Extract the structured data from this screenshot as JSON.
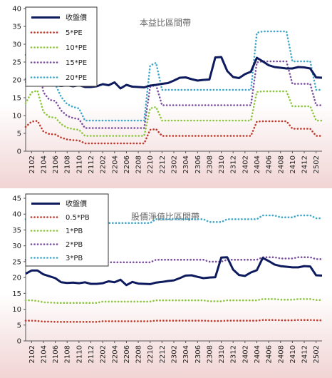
{
  "chart_data": [
    {
      "type": "line",
      "title": "本益比區間帶",
      "x_ticks": [
        "2102",
        "2104",
        "2106",
        "2108",
        "2110",
        "2112",
        "2202",
        "2204",
        "2206",
        "2208",
        "2210",
        "2212",
        "2302",
        "2304",
        "2306",
        "2308",
        "2310",
        "2312",
        "2402",
        "2404",
        "2406",
        "2408",
        "2410",
        "2412",
        "2502"
      ],
      "ylim": [
        0,
        40
      ],
      "y_ticks": [
        0,
        5,
        10,
        15,
        20,
        25,
        30,
        35,
        40
      ],
      "grid": false,
      "legend_position": "top-left",
      "series": [
        {
          "name": "收盤價",
          "color": "#0d1b5e",
          "dash": "solid",
          "values": [
            19.2,
            21.5,
            21.0,
            20.2,
            19.5,
            18.5,
            18.3,
            18.5,
            18.2,
            18.5,
            18.0,
            18.0,
            18.2,
            18.8,
            18.5,
            19.3,
            17.6,
            18.6,
            18.1,
            18.0,
            17.9,
            18.4,
            18.6,
            18.9,
            19.1,
            19.8,
            20.6,
            20.7,
            20.2,
            19.8,
            20.0,
            20.1,
            26.3,
            26.4,
            22.5,
            20.8,
            20.5,
            21.6,
            22.3,
            26.2,
            25.2,
            24.1,
            23.6,
            23.4,
            23.2,
            23.2,
            23.6,
            23.5,
            23.2,
            20.7,
            20.6
          ]
        },
        {
          "name": "5*PE",
          "color": "#c0392b",
          "dash": "dot",
          "values": [
            6.8,
            8.3,
            8.5,
            5.5,
            4.8,
            4.7,
            3.8,
            3.3,
            3.1,
            3.0,
            2.2,
            2.2,
            2.2,
            2.2,
            2.2,
            2.2,
            2.2,
            2.2,
            2.2,
            2.2,
            2.2,
            6.0,
            6.2,
            4.3,
            4.3,
            4.3,
            4.3,
            4.3,
            4.3,
            4.3,
            4.3,
            4.3,
            4.3,
            4.3,
            4.3,
            4.3,
            4.3,
            4.3,
            4.3,
            8.3,
            8.4,
            8.4,
            8.4,
            8.4,
            8.4,
            6.3,
            6.3,
            6.3,
            6.3,
            4.3,
            4.3
          ]
        },
        {
          "name": "10*PE",
          "color": "#8dc63f",
          "dash": "dot",
          "values": [
            13.5,
            16.5,
            17.0,
            11.0,
            9.6,
            9.4,
            7.6,
            6.6,
            6.2,
            6.0,
            4.3,
            4.3,
            4.3,
            4.3,
            4.3,
            4.3,
            4.3,
            4.3,
            4.3,
            4.3,
            4.3,
            12.0,
            12.4,
            8.6,
            8.6,
            8.6,
            8.6,
            8.6,
            8.6,
            8.6,
            8.6,
            8.6,
            8.6,
            8.6,
            8.6,
            8.6,
            8.6,
            8.6,
            8.6,
            16.6,
            16.8,
            16.8,
            16.8,
            16.8,
            16.8,
            12.6,
            12.6,
            12.6,
            12.6,
            8.6,
            8.6
          ]
        },
        {
          "name": "15*PE",
          "color": "#7b4fa0",
          "dash": "dot",
          "values": [
            20.3,
            24.8,
            25.5,
            16.5,
            14.4,
            14.1,
            11.4,
            9.9,
            9.3,
            9.0,
            6.5,
            6.5,
            6.5,
            6.5,
            6.5,
            6.5,
            6.5,
            6.5,
            6.5,
            6.5,
            6.5,
            18.0,
            18.6,
            12.9,
            12.9,
            12.9,
            12.9,
            12.9,
            12.9,
            12.9,
            12.9,
            12.9,
            12.9,
            12.9,
            12.9,
            12.9,
            12.9,
            12.9,
            12.9,
            24.9,
            25.2,
            25.2,
            25.2,
            25.2,
            25.2,
            18.9,
            18.9,
            18.9,
            18.9,
            12.9,
            12.9
          ]
        },
        {
          "name": "20*PE",
          "color": "#3fa7c9",
          "dash": "dot",
          "values": [
            27.0,
            33.0,
            34.0,
            22.0,
            19.2,
            18.8,
            15.2,
            13.2,
            12.4,
            12.0,
            8.6,
            8.6,
            8.6,
            8.6,
            8.6,
            8.6,
            8.6,
            8.6,
            8.6,
            8.6,
            8.6,
            24.0,
            24.8,
            17.2,
            17.2,
            17.2,
            17.2,
            17.2,
            17.2,
            17.2,
            17.2,
            17.2,
            17.2,
            17.2,
            17.2,
            17.2,
            17.2,
            17.2,
            17.2,
            33.2,
            33.6,
            33.6,
            33.6,
            33.6,
            33.6,
            25.2,
            25.2,
            25.2,
            25.2,
            17.2,
            17.2
          ]
        }
      ]
    },
    {
      "type": "line",
      "title": "股價淨值比區間帶",
      "x_ticks": [
        "2102",
        "2104",
        "2106",
        "2108",
        "2110",
        "2112",
        "2202",
        "2204",
        "2206",
        "2208",
        "2210",
        "2212",
        "2302",
        "2304",
        "2306",
        "2308",
        "2310",
        "2312",
        "2402",
        "2404",
        "2406",
        "2408",
        "2410",
        "2412",
        "2502"
      ],
      "ylim": [
        0,
        45
      ],
      "y_ticks": [
        0,
        5,
        10,
        15,
        20,
        25,
        30,
        35,
        40,
        45
      ],
      "grid": false,
      "legend_position": "top-left",
      "series": [
        {
          "name": "收盤價",
          "color": "#0d1b5e",
          "dash": "solid",
          "values": [
            21.2,
            22.2,
            22.2,
            21.0,
            20.4,
            19.8,
            18.5,
            18.3,
            18.4,
            18.2,
            18.5,
            18.0,
            18.0,
            18.2,
            18.8,
            18.5,
            19.3,
            17.6,
            18.6,
            18.1,
            18.0,
            17.9,
            18.4,
            18.6,
            18.9,
            19.1,
            19.8,
            20.6,
            20.7,
            20.2,
            19.8,
            20.0,
            20.1,
            26.3,
            26.4,
            22.5,
            20.8,
            20.5,
            21.6,
            22.3,
            26.2,
            25.2,
            24.1,
            23.6,
            23.4,
            23.2,
            23.2,
            23.6,
            23.5,
            20.7,
            20.6
          ]
        },
        {
          "name": "0.5*PB",
          "color": "#c0392b",
          "dash": "dot",
          "values": [
            6.4,
            6.4,
            6.3,
            6.1,
            6.1,
            6.0,
            6.0,
            6.0,
            6.0,
            6.0,
            6.0,
            6.0,
            6.0,
            6.2,
            6.2,
            6.2,
            6.2,
            6.2,
            6.2,
            6.2,
            6.2,
            6.2,
            6.4,
            6.4,
            6.4,
            6.4,
            6.4,
            6.4,
            6.4,
            6.4,
            6.4,
            6.3,
            6.3,
            6.3,
            6.4,
            6.4,
            6.4,
            6.4,
            6.4,
            6.4,
            6.6,
            6.6,
            6.6,
            6.5,
            6.5,
            6.5,
            6.6,
            6.6,
            6.6,
            6.5,
            6.5
          ]
        },
        {
          "name": "1*PB",
          "color": "#8dc63f",
          "dash": "dot",
          "values": [
            12.8,
            12.8,
            12.6,
            12.2,
            12.1,
            12.0,
            12.0,
            12.0,
            12.0,
            12.0,
            12.0,
            12.0,
            12.0,
            12.4,
            12.4,
            12.4,
            12.4,
            12.4,
            12.4,
            12.4,
            12.4,
            12.4,
            12.8,
            12.8,
            12.8,
            12.8,
            12.8,
            12.8,
            12.8,
            12.8,
            12.8,
            12.5,
            12.5,
            12.5,
            12.8,
            12.8,
            12.8,
            12.8,
            12.8,
            12.8,
            13.2,
            13.2,
            13.2,
            13.0,
            13.0,
            13.0,
            13.2,
            13.2,
            13.2,
            12.9,
            12.9
          ]
        },
        {
          "name": "2*PB",
          "color": "#7b4fa0",
          "dash": "dot",
          "values": [
            25.6,
            25.6,
            25.2,
            24.4,
            24.2,
            24.0,
            24.0,
            24.0,
            24.0,
            24.0,
            24.0,
            24.0,
            24.0,
            24.8,
            24.8,
            24.8,
            24.8,
            24.8,
            24.8,
            24.8,
            24.8,
            24.8,
            25.6,
            25.6,
            25.6,
            25.6,
            25.6,
            25.6,
            25.6,
            25.6,
            25.6,
            25.0,
            25.0,
            25.0,
            25.6,
            25.6,
            25.6,
            25.6,
            25.6,
            25.6,
            26.4,
            26.4,
            26.4,
            26.0,
            26.0,
            26.0,
            26.4,
            26.4,
            26.4,
            25.8,
            25.8
          ]
        },
        {
          "name": "3*PB",
          "color": "#3fa7c9",
          "dash": "dot",
          "values": [
            38.4,
            38.4,
            37.8,
            36.6,
            36.3,
            36.0,
            36.0,
            36.0,
            36.0,
            36.0,
            36.0,
            36.0,
            36.0,
            37.2,
            37.2,
            37.2,
            37.2,
            37.2,
            37.2,
            37.2,
            37.2,
            37.2,
            38.4,
            38.4,
            38.4,
            38.4,
            38.4,
            38.4,
            38.4,
            38.4,
            38.4,
            37.5,
            37.5,
            37.5,
            38.4,
            38.4,
            38.4,
            38.4,
            38.4,
            38.4,
            39.6,
            39.6,
            39.6,
            39.0,
            39.0,
            39.0,
            39.6,
            39.6,
            39.6,
            38.7,
            38.7
          ]
        }
      ]
    }
  ]
}
